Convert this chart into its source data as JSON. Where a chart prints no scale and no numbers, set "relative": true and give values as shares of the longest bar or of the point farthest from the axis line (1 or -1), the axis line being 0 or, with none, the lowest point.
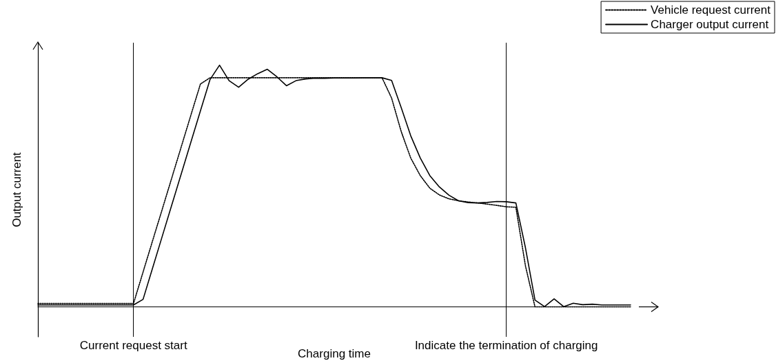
{
  "chart_data": {
    "type": "line",
    "relative": true,
    "xlabel": "Charging time",
    "ylabel": "Output current",
    "grid": false,
    "legend": "top right",
    "categories": [
      null,
      null,
      null,
      null,
      null,
      null,
      null,
      null,
      null,
      null,
      null,
      null,
      null,
      null,
      null,
      null,
      null,
      null,
      null,
      null,
      null,
      null,
      null,
      null,
      null,
      null,
      null,
      null,
      null,
      null,
      null,
      null,
      null,
      null,
      null,
      null,
      null,
      null,
      null,
      null,
      null,
      null,
      null,
      null,
      null,
      null,
      null,
      null,
      null,
      null,
      null,
      null,
      null,
      null,
      null,
      null,
      null,
      null,
      null,
      null,
      null,
      null,
      null
    ],
    "series": [
      {
        "name": "Vehicle request current",
        "color": "#000000",
        "line_style": "dotted",
        "values": [
          0.014,
          0.014,
          0.014,
          0.014,
          0.014,
          0.014,
          0.014,
          0.014,
          0.014,
          0.014,
          0.014,
          0.144,
          0.274,
          0.403,
          0.533,
          0.663,
          0.793,
          0.922,
          0.948,
          0.948,
          0.948,
          0.948,
          0.948,
          0.948,
          0.948,
          0.948,
          0.948,
          0.948,
          0.948,
          0.948,
          0.948,
          0.948,
          0.948,
          0.948,
          0.948,
          0.948,
          0.948,
          0.864,
          0.726,
          0.616,
          0.543,
          0.491,
          0.463,
          0.447,
          0.439,
          0.434,
          0.43,
          0.425,
          0.42,
          0.414,
          0.412,
          0.17,
          0,
          0,
          0,
          0,
          0,
          0,
          0,
          0,
          0,
          0,
          0
        ]
      },
      {
        "name": "Charger output current",
        "color": "#000000",
        "line_style": "solid",
        "values": [
          0.008,
          0.008,
          0.008,
          0.008,
          0.008,
          0.008,
          0.008,
          0.008,
          0.008,
          0.008,
          0.008,
          0.031,
          0.161,
          0.291,
          0.421,
          0.551,
          0.681,
          0.811,
          0.94,
          1,
          0.936,
          0.909,
          0.942,
          0.965,
          0.983,
          0.952,
          0.915,
          0.936,
          0.943,
          0.946,
          0.946,
          0.947,
          0.947,
          0.947,
          0.948,
          0.948,
          0.948,
          0.937,
          0.825,
          0.708,
          0.616,
          0.543,
          0.496,
          0.462,
          0.439,
          0.431,
          0.43,
          0.432,
          0.436,
          0.435,
          0.43,
          0.245,
          0.028,
          0.001,
          0.033,
          0.001,
          0.015,
          0.009,
          0.011,
          0.008,
          0.008,
          0.008,
          0.008
        ]
      }
    ],
    "annotations": [
      "Current request start",
      "Indicate the termination of charging"
    ]
  }
}
